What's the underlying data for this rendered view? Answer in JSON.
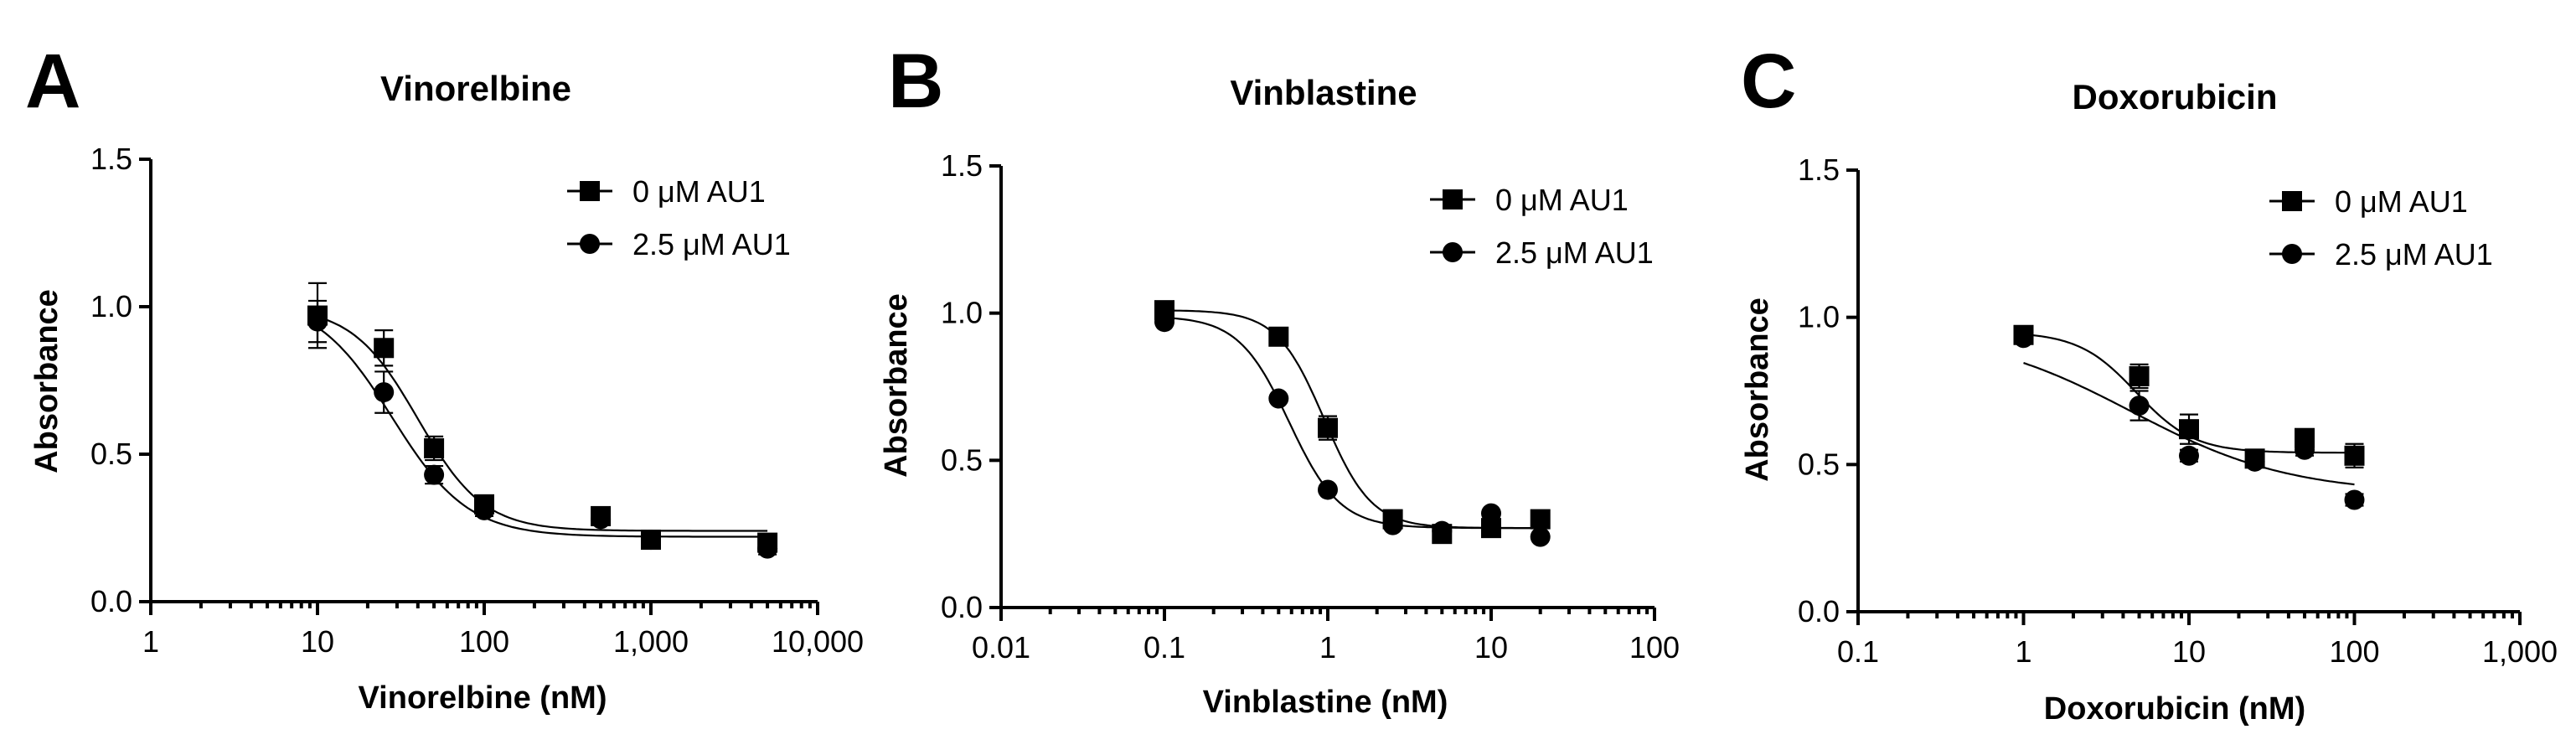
{
  "colors": {
    "ink": "#000000",
    "background": "#ffffff"
  },
  "chart_data": [
    {
      "panel": "A",
      "type": "scatter",
      "title": "Vinorelbine",
      "xlabel": "Vinorelbine (nM)",
      "ylabel": "Absorbance",
      "x_scale": "log",
      "xlim": [
        1,
        10000
      ],
      "ylim": [
        0,
        1.5
      ],
      "x_ticks": [
        1,
        10,
        100,
        1000,
        10000
      ],
      "x_tick_labels": [
        "1",
        "10",
        "100",
        "1,000",
        "10,000"
      ],
      "y_ticks": [
        0,
        0.5,
        1.0,
        1.5
      ],
      "y_tick_labels": [
        "0.0",
        "0.5",
        "1.0",
        "1.5"
      ],
      "grid": false,
      "legend_position": "top-right",
      "series": [
        {
          "name": "0 μM AU1",
          "marker": "square",
          "x": [
            10,
            25,
            50,
            100,
            500,
            1000,
            5000
          ],
          "y": [
            0.97,
            0.86,
            0.52,
            0.33,
            0.29,
            0.21,
            0.2
          ],
          "error": [
            0.11,
            0.06,
            0.04,
            0.03,
            0.03,
            0.02,
            0.02
          ],
          "fit": {
            "bottom": 0.24,
            "top": 1.0,
            "ec50": 40,
            "hill": 2.2
          }
        },
        {
          "name": "2.5 μM AU1",
          "marker": "circle",
          "x": [
            10,
            25,
            50,
            100,
            500,
            1000,
            5000
          ],
          "y": [
            0.95,
            0.71,
            0.43,
            0.31,
            0.28,
            0.21,
            0.18
          ],
          "error": [
            0.07,
            0.07,
            0.03,
            0.02,
            0.02,
            0.02,
            0.02
          ],
          "fit": {
            "bottom": 0.22,
            "top": 1.03,
            "ec50": 28,
            "hill": 1.9
          }
        }
      ]
    },
    {
      "panel": "B",
      "type": "scatter",
      "title": "Vinblastine",
      "xlabel": "Vinblastine (nM)",
      "ylabel": "Absorbance",
      "x_scale": "log",
      "xlim": [
        0.01,
        100
      ],
      "ylim": [
        0,
        1.5
      ],
      "x_ticks": [
        0.01,
        0.1,
        1,
        10,
        100
      ],
      "x_tick_labels": [
        "0.01",
        "0.1",
        "1",
        "10",
        "100"
      ],
      "y_ticks": [
        0,
        0.5,
        1.0,
        1.5
      ],
      "y_tick_labels": [
        "0.0",
        "0.5",
        "1.0",
        "1.5"
      ],
      "grid": false,
      "legend_position": "top-right",
      "series": [
        {
          "name": "0 μM AU1",
          "marker": "square",
          "x": [
            0.1,
            0.5,
            1,
            2.5,
            5,
            10,
            20
          ],
          "y": [
            1.01,
            0.92,
            0.61,
            0.3,
            0.25,
            0.27,
            0.3
          ],
          "error": [
            0.02,
            0.02,
            0.04,
            0.02,
            0.02,
            0.02,
            0.02
          ],
          "fit": {
            "bottom": 0.27,
            "top": 1.01,
            "ec50": 0.95,
            "hill": 3.0
          }
        },
        {
          "name": "2.5 μM AU1",
          "marker": "circle",
          "x": [
            0.1,
            0.5,
            1,
            2.5,
            5,
            10,
            20
          ],
          "y": [
            0.97,
            0.71,
            0.4,
            0.28,
            0.26,
            0.32,
            0.24
          ],
          "error": [
            0.01,
            0.01,
            0.01,
            0.01,
            0.01,
            0.01,
            0.01
          ],
          "fit": {
            "bottom": 0.27,
            "top": 0.99,
            "ec50": 0.58,
            "hill": 2.8
          }
        }
      ]
    },
    {
      "panel": "C",
      "type": "scatter",
      "title": "Doxorubicin",
      "xlabel": "Doxorubicin (nM)",
      "ylabel": "Absorbance",
      "x_scale": "log",
      "xlim": [
        0.1,
        1000
      ],
      "ylim": [
        0,
        1.5
      ],
      "x_ticks": [
        0.1,
        1,
        10,
        100,
        1000
      ],
      "x_tick_labels": [
        "0.1",
        "1",
        "10",
        "100",
        "1,000"
      ],
      "y_ticks": [
        0,
        0.5,
        1.0,
        1.5
      ],
      "y_tick_labels": [
        "0.0",
        "0.5",
        "1.0",
        "1.5"
      ],
      "grid": false,
      "legend_position": "top-right",
      "series": [
        {
          "name": "0 μM AU1",
          "marker": "square",
          "x": [
            1,
            5,
            10,
            25,
            50,
            100
          ],
          "y": [
            0.94,
            0.8,
            0.62,
            0.52,
            0.59,
            0.53
          ],
          "error": [
            0.02,
            0.04,
            0.05,
            0.02,
            0.03,
            0.04
          ],
          "fit": {
            "bottom": 0.54,
            "top": 0.95,
            "ec50": 4.8,
            "hill": 2.5
          }
        },
        {
          "name": "2.5 μM AU1",
          "marker": "circle",
          "x": [
            1,
            5,
            10,
            25,
            50,
            100
          ],
          "y": [
            0.93,
            0.7,
            0.53,
            0.51,
            0.55,
            0.38
          ],
          "error": [
            0.01,
            0.05,
            0.02,
            0.02,
            0.02,
            0.02
          ],
          "fit": {
            "bottom": 0.4,
            "top": 0.96,
            "ec50": 4.5,
            "hill": 0.9
          }
        }
      ]
    }
  ]
}
